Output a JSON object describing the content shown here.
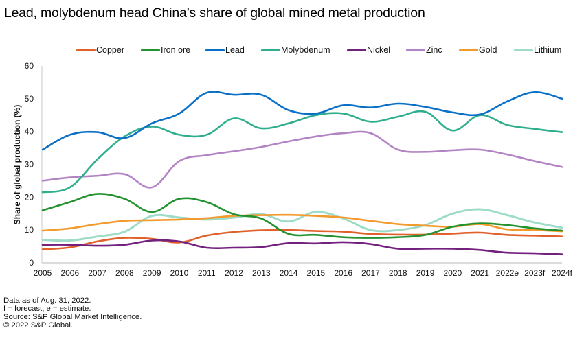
{
  "title": "Lead, molybdenum head China’s share of global mined metal production",
  "footer": {
    "notes": [
      "Data as of Aug. 31, 2022.",
      "f = forecast;  e = estimate.",
      "Source: S&P Global Market Intelligence.",
      "© 2022 S&P Global."
    ]
  },
  "chart_data": {
    "type": "line",
    "title": "Lead, molybdenum head China’s share of global mined metal production",
    "xlabel": "",
    "ylabel": "Share of global production (%)",
    "ylim": [
      0,
      60
    ],
    "yticks": [
      0,
      10,
      20,
      30,
      40,
      50,
      60
    ],
    "grid": false,
    "legend_position": "top-right",
    "smooth": true,
    "categories": [
      "2005",
      "2006",
      "2007",
      "2008",
      "2009",
      "2010",
      "2011",
      "2012",
      "2013",
      "2014",
      "2015",
      "2016",
      "2017",
      "2018",
      "2019",
      "2020",
      "2021",
      "2022e",
      "2023f",
      "2024f"
    ],
    "series": [
      {
        "name": "Copper",
        "color": "#E0612A",
        "values": [
          4.1,
          4.7,
          6.5,
          7.6,
          7.3,
          6.2,
          8.3,
          9.4,
          9.9,
          10.0,
          9.7,
          9.5,
          8.8,
          8.6,
          8.6,
          8.9,
          9.2,
          8.5,
          8.3,
          8.0
        ]
      },
      {
        "name": "Iron ore",
        "color": "#23922F",
        "values": [
          16.0,
          18.5,
          21.0,
          19.5,
          15.5,
          19.5,
          18.5,
          14.8,
          13.5,
          8.8,
          8.5,
          7.8,
          7.6,
          7.8,
          8.5,
          11.0,
          12.0,
          11.5,
          10.5,
          9.8
        ]
      },
      {
        "name": "Lead",
        "color": "#0A6FC7",
        "values": [
          34.5,
          39.0,
          39.8,
          38.0,
          42.5,
          45.5,
          51.8,
          51.2,
          51.2,
          46.5,
          45.5,
          48.0,
          47.3,
          48.5,
          47.5,
          45.8,
          45.2,
          49.2,
          52.0,
          50.0
        ]
      },
      {
        "name": "Molybdenum",
        "color": "#2FAE8E",
        "values": [
          21.5,
          23.0,
          31.5,
          38.5,
          41.5,
          39.0,
          39.0,
          44.0,
          41.0,
          42.5,
          45.0,
          45.5,
          43.0,
          44.5,
          46.0,
          40.3,
          45.0,
          42.0,
          40.8,
          39.8
        ]
      },
      {
        "name": "Nickel",
        "color": "#74207F",
        "values": [
          5.5,
          5.5,
          5.2,
          5.5,
          6.8,
          6.5,
          4.6,
          4.6,
          4.8,
          6.0,
          5.9,
          6.3,
          5.7,
          4.3,
          4.3,
          4.3,
          3.9,
          3.1,
          2.9,
          2.6
        ]
      },
      {
        "name": "Zinc",
        "color": "#B384C4",
        "values": [
          25.0,
          26.0,
          26.5,
          27.0,
          23.0,
          31.0,
          32.8,
          34.0,
          35.3,
          37.0,
          38.5,
          39.5,
          39.5,
          34.5,
          33.8,
          34.3,
          34.5,
          33.0,
          31.0,
          29.2
        ]
      },
      {
        "name": "Gold",
        "color": "#F39A2C",
        "values": [
          9.8,
          10.5,
          11.8,
          12.8,
          13.0,
          13.2,
          13.6,
          14.3,
          14.5,
          14.6,
          14.3,
          13.8,
          12.8,
          11.8,
          11.3,
          11.0,
          11.8,
          10.2,
          10.0,
          9.6
        ]
      },
      {
        "name": "Lithium",
        "color": "#9EDBC9",
        "values": [
          7.0,
          6.8,
          8.0,
          9.5,
          14.3,
          13.8,
          13.2,
          13.8,
          14.8,
          12.6,
          15.5,
          13.5,
          10.0,
          10.0,
          11.5,
          15.0,
          16.3,
          14.5,
          12.3,
          10.7
        ]
      }
    ]
  }
}
